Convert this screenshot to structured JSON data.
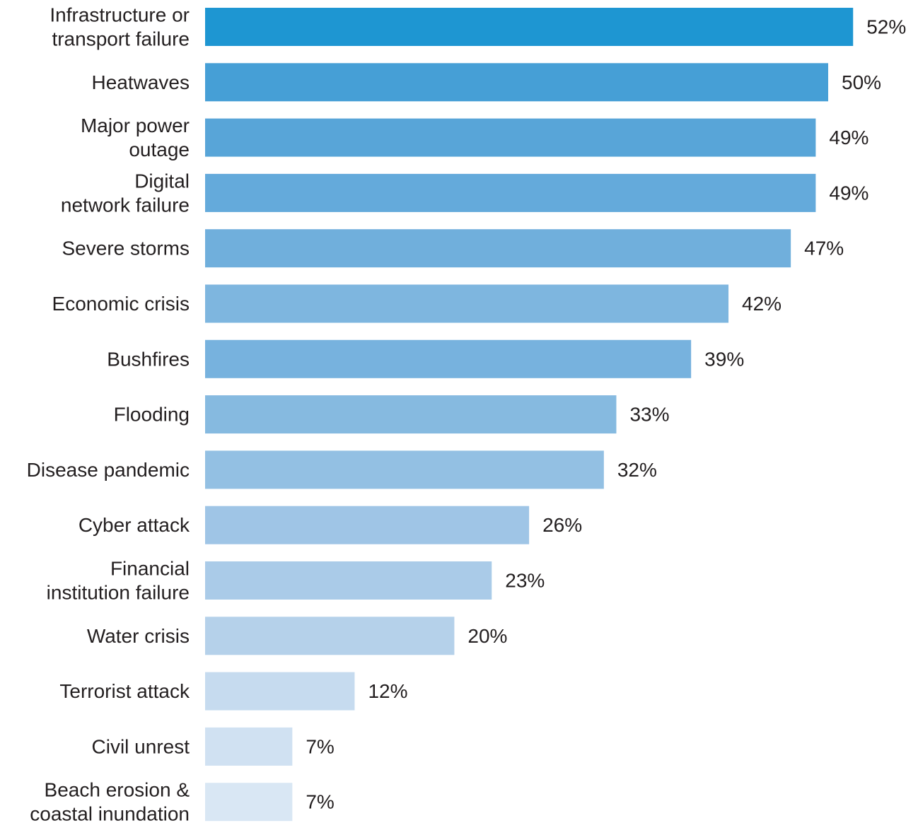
{
  "chart_data": {
    "type": "bar",
    "orientation": "horizontal",
    "categories": [
      [
        "Infrastructure or",
        "transport failure"
      ],
      [
        "Heatwaves"
      ],
      [
        "Major power",
        "outage"
      ],
      [
        "Digital",
        "network failure"
      ],
      [
        "Severe storms"
      ],
      [
        "Economic crisis"
      ],
      [
        "Bushfires"
      ],
      [
        "Flooding"
      ],
      [
        "Disease pandemic"
      ],
      [
        "Cyber attack"
      ],
      [
        "Financial",
        "institution failure"
      ],
      [
        "Water crisis"
      ],
      [
        "Terrorist attack"
      ],
      [
        "Civil unrest"
      ],
      [
        "Beach erosion &",
        "coastal inundation"
      ]
    ],
    "values": [
      52,
      50,
      49,
      49,
      47,
      42,
      39,
      33,
      32,
      26,
      23,
      20,
      12,
      7,
      7
    ],
    "value_labels": [
      "52%",
      "50%",
      "49%",
      "49%",
      "47%",
      "42%",
      "39%",
      "33%",
      "32%",
      "26%",
      "23%",
      "20%",
      "12%",
      "7%",
      "7%"
    ],
    "colors": [
      "#1e96d2",
      "#469fd6",
      "#58a5d8",
      "#64aadb",
      "#70afdc",
      "#7eb6df",
      "#77b2de",
      "#86bae0",
      "#93c0e3",
      "#9fc5e6",
      "#aacbe8",
      "#b5d1ea",
      "#c6dbef",
      "#d0e1f2",
      "#d9e7f4"
    ],
    "grid": false,
    "legend": "none"
  }
}
